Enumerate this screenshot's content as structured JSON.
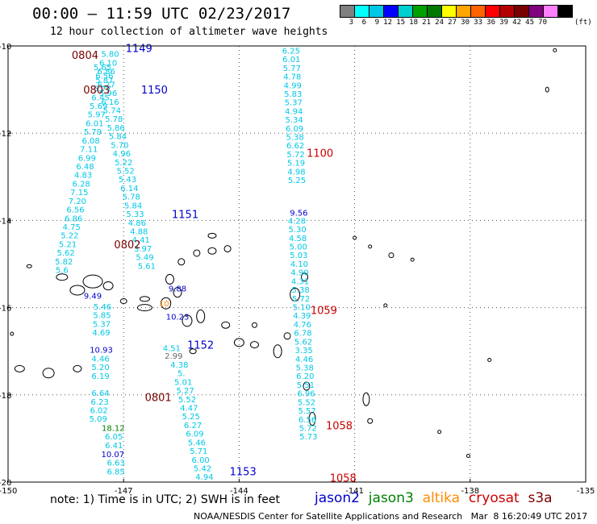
{
  "header": {
    "title": "00:00 – 11:59 UTC 02/23/2017",
    "subtitle": "12 hour collection of altimeter wave heights"
  },
  "legend": {
    "colors": [
      "#808080",
      "#00ffff",
      "#00c8e6",
      "#0000ff",
      "#00cfcf",
      "#00a000",
      "#007800",
      "#ffff00",
      "#ffa500",
      "#ff6400",
      "#ff0000",
      "#b40000",
      "#780000",
      "#800080",
      "#ff80ff",
      "#000000"
    ],
    "labels": [
      "3",
      "6",
      "9",
      "12",
      "15",
      "18",
      "21",
      "24",
      "27",
      "30",
      "33",
      "36",
      "39",
      "42",
      "45",
      "70"
    ],
    "unit": "(ft)"
  },
  "axes": {
    "lon_ticks": [
      "-150",
      "-147",
      "-144",
      "-141",
      "-138",
      "-135"
    ],
    "lat_ticks": [
      "-10",
      "-12",
      "-14",
      "-16",
      "-18",
      "-20"
    ]
  },
  "colors": {
    "jason2": "#0000cd",
    "jason3": "#008000",
    "altika": "#ff8c00",
    "cryosat": "#cc0000",
    "s3a": "#7a0000",
    "value": "#00c8e6"
  },
  "pass_labels": [
    {
      "text": "1149",
      "sat": "jason2",
      "lon": -146.6,
      "lat": -10.05
    },
    {
      "text": "0804",
      "sat": "s3a",
      "lon": -148.0,
      "lat": -10.2
    },
    {
      "text": "0803",
      "sat": "s3a",
      "lon": -147.7,
      "lat": -11.0
    },
    {
      "text": "1150",
      "sat": "jason2",
      "lon": -146.2,
      "lat": -11.0
    },
    {
      "text": "1100",
      "sat": "cryosat",
      "lon": -141.9,
      "lat": -12.45
    },
    {
      "text": "1151",
      "sat": "jason2",
      "lon": -145.4,
      "lat": -13.85
    },
    {
      "text": "0802",
      "sat": "s3a",
      "lon": -146.9,
      "lat": -14.55
    },
    {
      "text": "1059",
      "sat": "cryosat",
      "lon": -141.8,
      "lat": -16.05
    },
    {
      "text": "1152",
      "sat": "jason2",
      "lon": -145.0,
      "lat": -16.85
    },
    {
      "text": "0801",
      "sat": "s3a",
      "lon": -146.1,
      "lat": -18.05
    },
    {
      "text": "1058",
      "sat": "cryosat",
      "lon": -141.4,
      "lat": -18.7
    },
    {
      "text": "1153",
      "sat": "jason2",
      "lon": -143.9,
      "lat": -19.75
    },
    {
      "text": "1058",
      "sat": "cryosat",
      "lon": -141.3,
      "lat": -19.9
    }
  ],
  "tracks": [
    {
      "sat": "cryosat",
      "lon_start": -147.35,
      "lat_start": -10.18,
      "dlon": -0.05,
      "dlat": 0.198,
      "values": [
        "5.80",
        "6.10",
        "6.86",
        "5.87",
        "5.77",
        "6.45",
        "5.69",
        "5.97",
        "6.01",
        "5.79",
        "6.08",
        "7.11",
        "6.99",
        "6.48",
        "4.83",
        "6.28",
        "7.15",
        "7.20",
        "6.56",
        "6.86",
        "4.75",
        "5.22",
        "5.21",
        "5.62",
        "5.82",
        "5.6"
      ]
    },
    {
      "sat": "jason2",
      "lon_start": -147.8,
      "lat_start": -15.72,
      "dlon": 0,
      "dlat": 0,
      "values": [
        "9.49"
      ]
    },
    {
      "sat": "cryosat",
      "lon_start": -147.55,
      "lat_start": -15.97,
      "dlon": -0.01,
      "dlat": 0.198,
      "values": [
        "5.46",
        "5.85",
        "5.37",
        "4.69"
      ]
    },
    {
      "sat": "jason2",
      "lon_start": -147.58,
      "lat_start": -16.96,
      "dlon": 0,
      "dlat": 0,
      "values": [
        "10.93"
      ]
    },
    {
      "sat": "cryosat",
      "lon_start": -147.6,
      "lat_start": -17.16,
      "dlon": 0,
      "dlat": 0.198,
      "values": [
        "4.46",
        "5.20",
        "6.19"
      ]
    },
    {
      "sat": "cryosat",
      "lon_start": -147.6,
      "lat_start": -17.95,
      "dlon": -0.02,
      "dlat": 0.198,
      "values": [
        "6.64",
        "6.23",
        "6.02",
        "5.09"
      ]
    },
    {
      "sat": "jason3",
      "lon_start": -147.27,
      "lat_start": -18.75,
      "dlon": 0,
      "dlat": 0,
      "values": [
        "18.12"
      ]
    },
    {
      "sat": "cryosat",
      "lon_start": -147.25,
      "lat_start": -18.95,
      "dlon": 0,
      "dlat": 0.198,
      "values": [
        "6.05",
        "6.41"
      ]
    },
    {
      "sat": "jason2",
      "lon_start": -147.28,
      "lat_start": -19.35,
      "dlon": 0,
      "dlat": 0,
      "values": [
        "10.07"
      ]
    },
    {
      "sat": "cryosat",
      "lon_start": -147.2,
      "lat_start": -19.55,
      "dlon": 0,
      "dlat": 0.198,
      "values": [
        "6.63",
        "6.85"
      ]
    },
    {
      "sat": "cryosat",
      "lon_start": -147.55,
      "lat_start": -10.48,
      "dlon": 0.05,
      "dlat": 0.198,
      "values": [
        "5.65",
        "6.56",
        "6.27",
        "5.96",
        "6.16",
        "5.74",
        "5.78",
        "5.86",
        "5.84",
        "5.70",
        "4.96",
        "5.22",
        "5.52",
        "5.43",
        "6.14",
        "5.78",
        "5.84",
        "5.33",
        "4.86",
        "4.88",
        "4.41",
        "3.97",
        "5.49",
        "5.61"
      ]
    },
    {
      "sat": "jason2",
      "lon_start": -145.6,
      "lat_start": -15.55,
      "dlon": 0,
      "dlat": 0,
      "values": [
        "9.88"
      ]
    },
    {
      "sat": "altika",
      "lon_start": -145.95,
      "lat_start": -15.9,
      "dlon": 0,
      "dlat": 0,
      "values": [
        "10"
      ]
    },
    {
      "sat": "jason2",
      "lon_start": -145.6,
      "lat_start": -16.2,
      "dlon": 0,
      "dlat": 0,
      "values": [
        "10.23"
      ]
    },
    {
      "sat": "cryosat",
      "lon_start": -145.75,
      "lat_start": -16.92,
      "dlon": 0,
      "dlat": 0,
      "values": [
        "4.51"
      ]
    },
    {
      "sat": "grey",
      "lon_start": -145.7,
      "lat_start": -17.1,
      "dlon": 0,
      "dlat": 0,
      "values": [
        "2.99"
      ]
    },
    {
      "sat": "cryosat",
      "lon_start": -145.55,
      "lat_start": -17.3,
      "dlon": 0.05,
      "dlat": 0.198,
      "values": [
        "4.38",
        "5.",
        "5.01",
        "5.27",
        "5.52",
        "4.47",
        "5.25",
        "6.27",
        "6.09",
        "5.46",
        "5.71",
        "6.00",
        "5.42",
        "4.94"
      ]
    },
    {
      "sat": "cryosat",
      "lon_start": -142.65,
      "lat_start": -10.1,
      "dlon": 0.01,
      "dlat": 0.198,
      "values": [
        "6.25",
        "6.01",
        "5.77",
        "4.78",
        "4.99",
        "5.83",
        "5.37",
        "4.94",
        "5.34",
        "6.09",
        "5.38",
        "6.62",
        "5.72",
        "5.19",
        "4.98",
        "5.25"
      ]
    },
    {
      "sat": "jason2",
      "lon_start": -142.45,
      "lat_start": -13.82,
      "dlon": 0,
      "dlat": 0,
      "values": [
        "9.56"
      ]
    },
    {
      "sat": "cryosat",
      "lon_start": -142.5,
      "lat_start": -14.0,
      "dlon": 0.012,
      "dlat": 0.198,
      "values": [
        "4.28",
        "5.30",
        "4.58",
        "5.00",
        "5.03",
        "4.10",
        "4.90",
        "4.31",
        "5.38",
        "5.72",
        "5.10",
        "4.39",
        "4.76",
        "6.78",
        "5.62",
        "3.35",
        "4.46",
        "5.38",
        "6.20",
        "5.51",
        "6.96",
        "5.52",
        "5.57",
        "6.56",
        "5.72",
        "5.73"
      ]
    }
  ],
  "note": "note: 1) Time is in UTC; 2) SWH is in feet",
  "sat_legend": [
    {
      "name": "jason2",
      "color_key": "jason2"
    },
    {
      "name": "jason3",
      "color_key": "jason3"
    },
    {
      "name": "altika",
      "color_key": "altika"
    },
    {
      "name": "cryosat",
      "color_key": "cryosat"
    },
    {
      "name": "s3a",
      "color_key": "s3a"
    }
  ],
  "footer": "NOAA/NESDIS Center for Satellite Applications and Research   Mar  8 16:20:49 UTC 2017"
}
